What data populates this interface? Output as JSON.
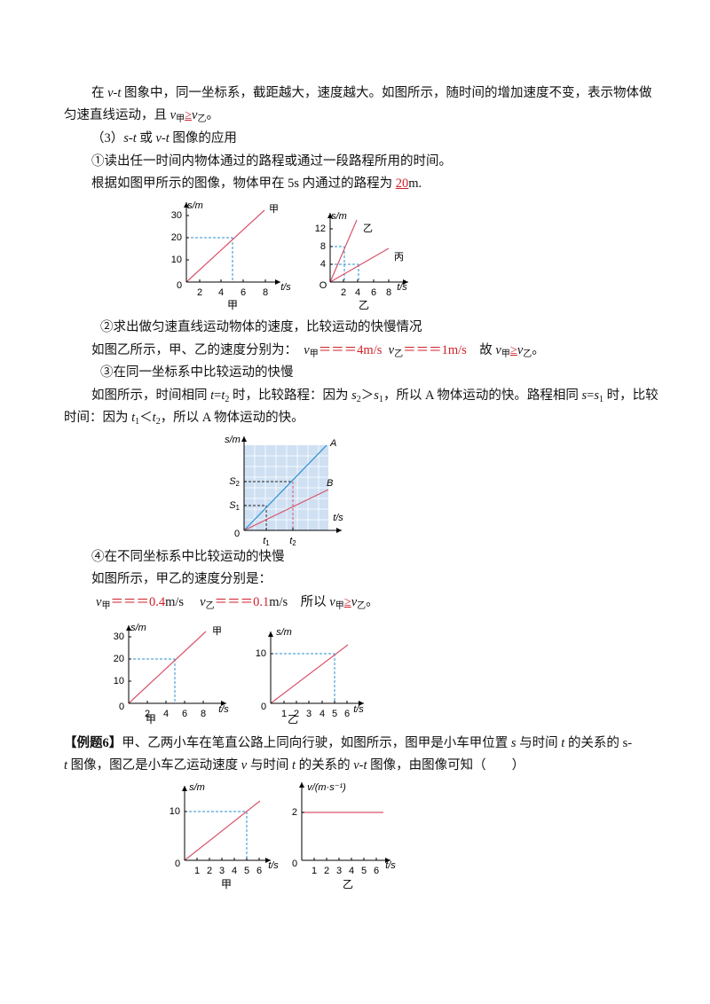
{
  "paragraphs": [
    [
      "在 ",
      "v-t",
      " 图象中，同一坐标系，截距越大，速度越大。如图所示，随时间的增加速度不变，表示物体做"
    ],
    [
      "匀速直线运动，且 ",
      "v",
      "甲",
      "≥",
      "v",
      "乙",
      "。"
    ],
    [
      "（3）",
      "s-t",
      " 或 ",
      "v-t",
      " 图像的应用"
    ],
    [
      "①读出任一时间内物体通过的路程或通过一段路程所用的时间。"
    ],
    [
      "根据如图甲所示的图像，物体甲在 5s 内通过的路程为 ",
      "20",
      "m."
    ],
    [
      "②求出做匀速直线运动物体的速度，比较运动的快慢情况"
    ],
    [
      "如图乙所示，甲、乙的速度分别为：  ",
      "v",
      "甲",
      "＝＝＝4m/s",
      "  ",
      "v",
      "乙",
      "＝＝＝1m/s",
      "    故 ",
      "v",
      "甲",
      "≥",
      "v",
      "乙",
      "。"
    ],
    [
      "③在同一坐标系中比较运动的快慢"
    ],
    [
      "如图所示，时间相同 ",
      "t",
      "=",
      "t",
      "2",
      " 时，比较路程：因为 ",
      "s",
      "2",
      "＞",
      "s",
      "1",
      "，所以 A 物体运动的快。路程相同 ",
      "s",
      "=",
      "s",
      "1",
      " 时，比较"
    ],
    [
      "时间：因为 ",
      "t",
      "1",
      "＜",
      "t",
      "2",
      "，所以 A 物体运动的快。"
    ],
    [
      "④在不同坐标系中比较运动的快慢"
    ],
    [
      "如图所示，甲乙的速度分别是："
    ],
    [
      "v",
      "甲",
      "＝＝＝",
      "0.4",
      "m/s     ",
      "v",
      "乙",
      "＝＝＝",
      "0.1",
      "m/s    所以 ",
      "v",
      "甲",
      "≥",
      "v",
      "乙",
      "。"
    ],
    [
      "【例题6】",
      "甲、乙两小车在笔直公路上同向行驶，如图所示，图甲是小车甲位置 ",
      "s",
      " 与时间 ",
      "t",
      " 的关系的 ",
      "s-"
    ],
    [
      "t",
      " 图像，图乙是小车乙运动速度 ",
      "v",
      " 与时间 ",
      "t",
      " 的关系的 ",
      "v-t",
      " 图像，由图像可知（　　）"
    ]
  ],
  "figures": [
    {
      "y_label": "s/m",
      "x_label": "t/s",
      "origin": "0",
      "yticks": [
        "10",
        "20",
        "30"
      ],
      "xticks": [
        "2",
        "4",
        "6",
        "8"
      ],
      "line_labels": [
        "甲"
      ],
      "caption": "甲"
    },
    {
      "y_label": "s/m",
      "x_label": "t/s",
      "origin": "O",
      "yticks": [
        "4",
        "8",
        "12"
      ],
      "xticks": [
        "2",
        "4",
        "6",
        "8"
      ],
      "line_labels": [
        "乙",
        "丙"
      ],
      "caption": "乙"
    },
    {
      "y_label": "s/m",
      "x_label": "t/s",
      "origin": "0",
      "yticks": [
        [
          "S",
          "1"
        ],
        [
          "S",
          "2"
        ]
      ],
      "xticks": [
        [
          "t",
          "1"
        ],
        [
          "t",
          "2"
        ]
      ],
      "line_labels": [
        "A",
        "B"
      ]
    },
    {
      "y_label": "s/m",
      "x_label": "t/s",
      "origin": "0",
      "yticks": [
        "10",
        "20",
        "30"
      ],
      "xticks": [
        "2",
        "4",
        "6",
        "8"
      ],
      "line_labels": [
        "甲"
      ],
      "caption": "甲"
    },
    {
      "y_label": "s/m",
      "x_label": "t/s",
      "origin": "0",
      "yticks": [
        "10"
      ],
      "xticks": [
        "1",
        "2",
        "3",
        "4",
        "5",
        "6"
      ],
      "caption": "乙"
    },
    {
      "y_label": "s/m",
      "x_label": "t/s",
      "origin": "0",
      "yticks": [
        "10"
      ],
      "xticks": [
        "1",
        "2",
        "3",
        "4",
        "5",
        "6"
      ],
      "caption": "甲"
    },
    {
      "y_label": "v/(m·s⁻¹)",
      "x_label": "t/s",
      "origin": "0",
      "yticks": [
        "2"
      ],
      "xticks": [
        "1",
        "2",
        "3",
        "4",
        "5",
        "6"
      ],
      "caption": "乙"
    }
  ]
}
